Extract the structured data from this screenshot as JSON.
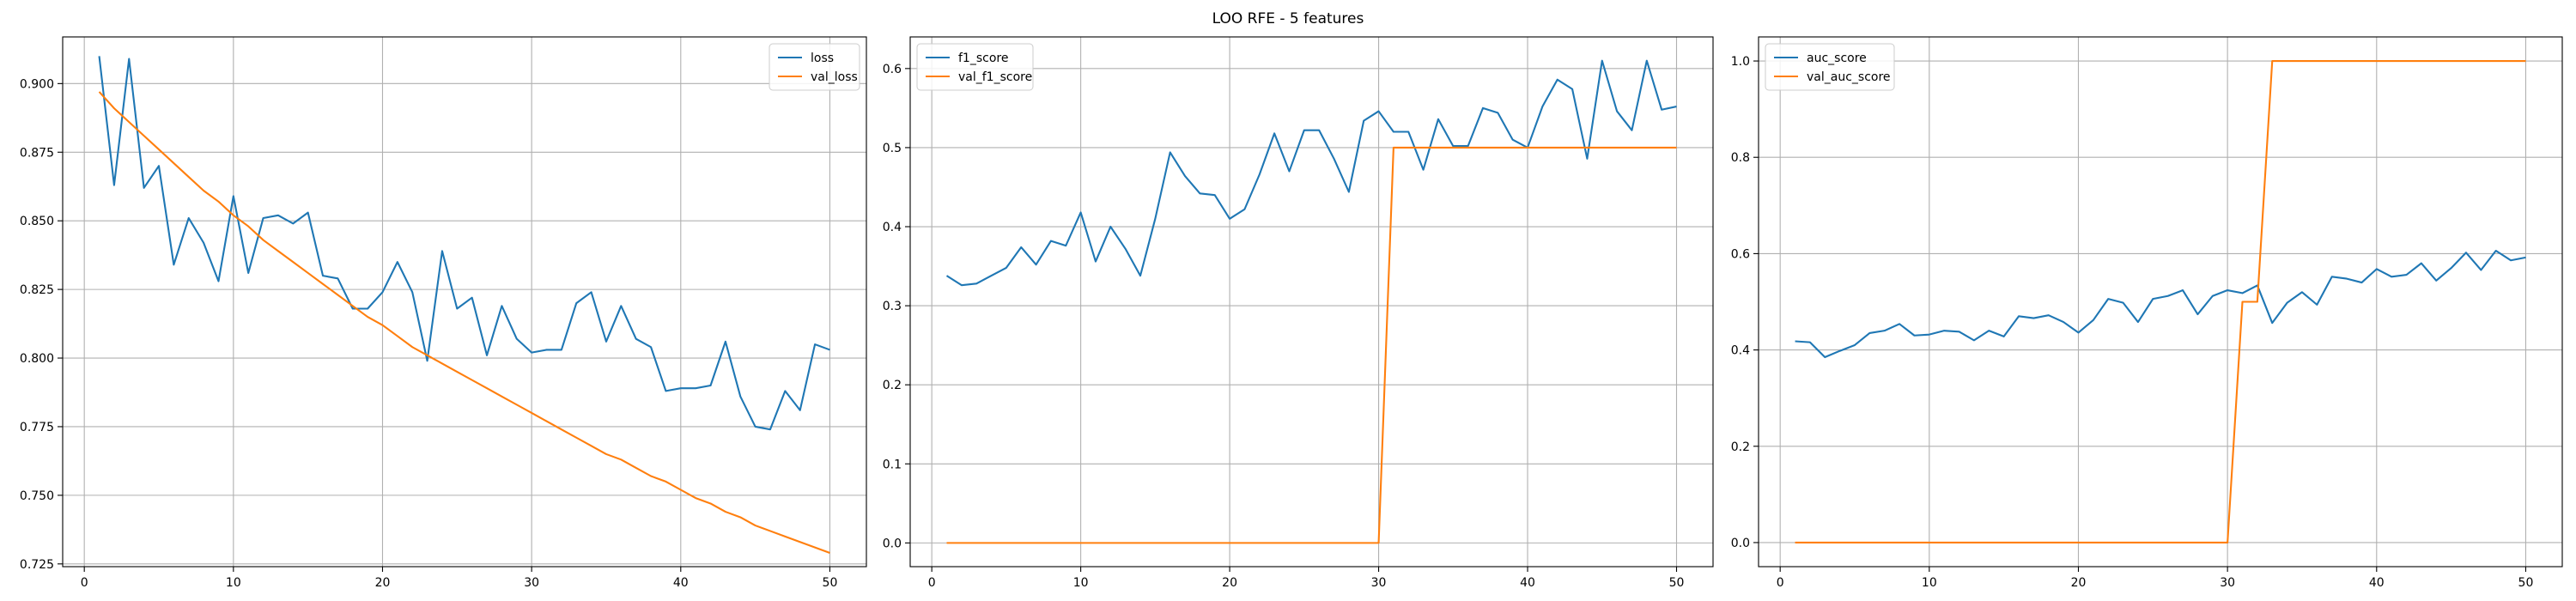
{
  "figure": {
    "suptitle": "LOO RFE - 5 features"
  },
  "colors": {
    "blue": "#1f77b4",
    "orange": "#ff7f0e",
    "grid": "#b0b0b0",
    "axes": "#000000"
  },
  "chart_data": [
    {
      "type": "line",
      "title": "",
      "xlabel": "",
      "ylabel": "",
      "xlim": [
        -1.45,
        52.45
      ],
      "ylim": [
        0.724,
        0.917
      ],
      "xticks": [
        0,
        10,
        20,
        30,
        40,
        50
      ],
      "xtick_labels": [
        "0",
        "10",
        "20",
        "30",
        "40",
        "50"
      ],
      "yticks": [
        0.725,
        0.75,
        0.775,
        0.8,
        0.825,
        0.85,
        0.875,
        0.9
      ],
      "ytick_labels": [
        "0.725",
        "0.750",
        "0.775",
        "0.800",
        "0.825",
        "0.850",
        "0.875",
        "0.900"
      ],
      "grid": true,
      "legend": "upper right",
      "x": [
        1,
        2,
        3,
        4,
        5,
        6,
        7,
        8,
        9,
        10,
        11,
        12,
        13,
        14,
        15,
        16,
        17,
        18,
        19,
        20,
        21,
        22,
        23,
        24,
        25,
        26,
        27,
        28,
        29,
        30,
        31,
        32,
        33,
        34,
        35,
        36,
        37,
        38,
        39,
        40,
        41,
        42,
        43,
        44,
        45,
        46,
        47,
        48,
        49,
        50
      ],
      "series": [
        {
          "name": "loss",
          "color": "#1f77b4",
          "values": [
            0.91,
            0.863,
            0.909,
            0.862,
            0.87,
            0.834,
            0.851,
            0.842,
            0.828,
            0.859,
            0.831,
            0.851,
            0.852,
            0.849,
            0.853,
            0.83,
            0.829,
            0.818,
            0.818,
            0.824,
            0.835,
            0.824,
            0.799,
            0.839,
            0.818,
            0.822,
            0.801,
            0.819,
            0.807,
            0.802,
            0.803,
            0.803,
            0.82,
            0.824,
            0.806,
            0.819,
            0.807,
            0.804,
            0.788,
            0.789,
            0.789,
            0.79,
            0.806,
            0.786,
            0.775,
            0.774,
            0.788,
            0.781,
            0.805,
            0.803
          ]
        },
        {
          "name": "val_loss",
          "color": "#ff7f0e",
          "values": [
            0.897,
            0.891,
            0.886,
            0.881,
            0.876,
            0.871,
            0.866,
            0.861,
            0.857,
            0.852,
            0.848,
            0.843,
            0.839,
            0.835,
            0.831,
            0.827,
            0.823,
            0.819,
            0.815,
            0.812,
            0.808,
            0.804,
            0.801,
            0.798,
            0.795,
            0.792,
            0.789,
            0.786,
            0.783,
            0.78,
            0.777,
            0.774,
            0.771,
            0.768,
            0.765,
            0.763,
            0.76,
            0.757,
            0.755,
            0.752,
            0.749,
            0.747,
            0.744,
            0.742,
            0.739,
            0.737,
            0.735,
            0.733,
            0.731,
            0.729
          ]
        }
      ]
    },
    {
      "type": "line",
      "title": "",
      "xlabel": "",
      "ylabel": "",
      "xlim": [
        -1.45,
        52.45
      ],
      "ylim": [
        -0.03,
        0.64
      ],
      "xticks": [
        0,
        10,
        20,
        30,
        40,
        50
      ],
      "xtick_labels": [
        "0",
        "10",
        "20",
        "30",
        "40",
        "50"
      ],
      "yticks": [
        0.0,
        0.1,
        0.2,
        0.3,
        0.4,
        0.5,
        0.6
      ],
      "ytick_labels": [
        "0.0",
        "0.1",
        "0.2",
        "0.3",
        "0.4",
        "0.5",
        "0.6"
      ],
      "grid": true,
      "legend": "upper left",
      "x": [
        1,
        2,
        3,
        4,
        5,
        6,
        7,
        8,
        9,
        10,
        11,
        12,
        13,
        14,
        15,
        16,
        17,
        18,
        19,
        20,
        21,
        22,
        23,
        24,
        25,
        26,
        27,
        28,
        29,
        30,
        31,
        32,
        33,
        34,
        35,
        36,
        37,
        38,
        39,
        40,
        41,
        42,
        43,
        44,
        45,
        46,
        47,
        48,
        49,
        50
      ],
      "series": [
        {
          "name": "f1_score",
          "color": "#1f77b4",
          "values": [
            0.338,
            0.326,
            0.328,
            0.338,
            0.348,
            0.374,
            0.352,
            0.382,
            0.376,
            0.418,
            0.356,
            0.4,
            0.372,
            0.338,
            0.41,
            0.494,
            0.464,
            0.442,
            0.44,
            0.41,
            0.422,
            0.466,
            0.518,
            0.47,
            0.522,
            0.522,
            0.486,
            0.444,
            0.534,
            0.546,
            0.52,
            0.52,
            0.472,
            0.536,
            0.502,
            0.502,
            0.55,
            0.544,
            0.51,
            0.5,
            0.552,
            0.586,
            0.574,
            0.486,
            0.61,
            0.546,
            0.522,
            0.61,
            0.548,
            0.552
          ]
        },
        {
          "name": "val_f1_score",
          "color": "#ff7f0e",
          "values": [
            0,
            0,
            0,
            0,
            0,
            0,
            0,
            0,
            0,
            0,
            0,
            0,
            0,
            0,
            0,
            0,
            0,
            0,
            0,
            0,
            0,
            0,
            0,
            0,
            0,
            0,
            0,
            0,
            0,
            0,
            0.5,
            0.5,
            0.5,
            0.5,
            0.5,
            0.5,
            0.5,
            0.5,
            0.5,
            0.5,
            0.5,
            0.5,
            0.5,
            0.5,
            0.5,
            0.5,
            0.5,
            0.5,
            0.5,
            0.5
          ]
        }
      ]
    },
    {
      "type": "line",
      "title": "",
      "xlabel": "",
      "ylabel": "",
      "xlim": [
        -1.45,
        52.45
      ],
      "ylim": [
        -0.05,
        1.05
      ],
      "xticks": [
        0,
        10,
        20,
        30,
        40,
        50
      ],
      "xtick_labels": [
        "0",
        "10",
        "20",
        "30",
        "40",
        "50"
      ],
      "yticks": [
        0.0,
        0.2,
        0.4,
        0.6,
        0.8,
        1.0
      ],
      "ytick_labels": [
        "0.0",
        "0.2",
        "0.4",
        "0.6",
        "0.8",
        "1.0"
      ],
      "grid": true,
      "legend": "upper left",
      "x": [
        1,
        2,
        3,
        4,
        5,
        6,
        7,
        8,
        9,
        10,
        11,
        12,
        13,
        14,
        15,
        16,
        17,
        18,
        19,
        20,
        21,
        22,
        23,
        24,
        25,
        26,
        27,
        28,
        29,
        30,
        31,
        32,
        33,
        34,
        35,
        36,
        37,
        38,
        39,
        40,
        41,
        42,
        43,
        44,
        45,
        46,
        47,
        48,
        49,
        50
      ],
      "series": [
        {
          "name": "auc_score",
          "color": "#1f77b4",
          "values": [
            0.418,
            0.416,
            0.385,
            0.398,
            0.41,
            0.435,
            0.44,
            0.454,
            0.43,
            0.432,
            0.44,
            0.438,
            0.42,
            0.44,
            0.428,
            0.47,
            0.466,
            0.472,
            0.458,
            0.436,
            0.462,
            0.506,
            0.498,
            0.458,
            0.506,
            0.512,
            0.524,
            0.474,
            0.512,
            0.524,
            0.518,
            0.534,
            0.456,
            0.498,
            0.52,
            0.494,
            0.552,
            0.548,
            0.54,
            0.568,
            0.552,
            0.556,
            0.58,
            0.544,
            0.57,
            0.602,
            0.566,
            0.606,
            0.586,
            0.592
          ]
        },
        {
          "name": "val_auc_score",
          "color": "#ff7f0e",
          "values": [
            0,
            0,
            0,
            0,
            0,
            0,
            0,
            0,
            0,
            0,
            0,
            0,
            0,
            0,
            0,
            0,
            0,
            0,
            0,
            0,
            0,
            0,
            0,
            0,
            0,
            0,
            0,
            0,
            0,
            0,
            0.5,
            0.5,
            1,
            1,
            1,
            1,
            1,
            1,
            1,
            1,
            1,
            1,
            1,
            1,
            1,
            1,
            1,
            1,
            1,
            1
          ]
        }
      ]
    }
  ]
}
